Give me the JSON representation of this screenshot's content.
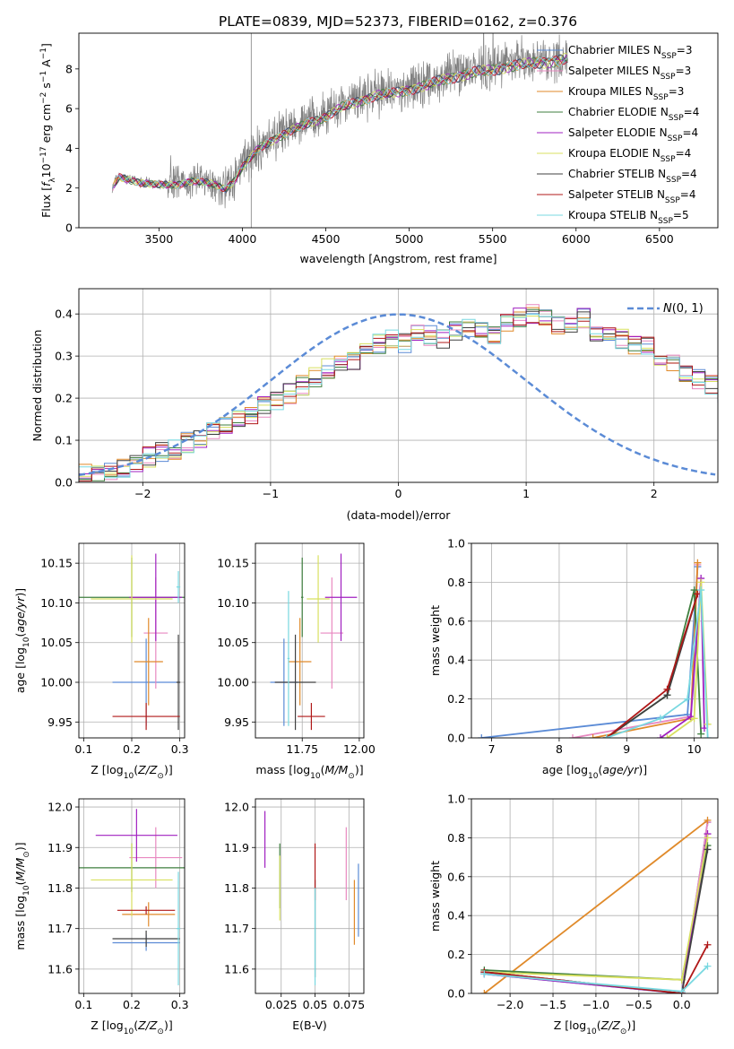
{
  "title": "PLATE=0839, MJD=52373, FIBERID=0162, z=0.376",
  "colors": {
    "Chabrier MILES": "#5b8bd6",
    "Salpeter MILES": "#e888c0",
    "Kroupa MILES": "#e08a2a",
    "Chabrier ELODIE": "#3f7f3f",
    "Salpeter ELODIE": "#a020c0",
    "Kroupa ELODIE": "#d8e060",
    "Chabrier STELIB": "#404040",
    "Salpeter STELIB": "#b01818",
    "Kroupa STELIB": "#78d8e0",
    "data_gray": "#808080",
    "normal_curve": "#5b8bd6"
  },
  "chart_data": [
    {
      "id": "spectrum",
      "type": "line",
      "xlabel": "wavelength [Angstrom, rest frame]",
      "ylabel": "Flux [f_λ 10^-17 erg cm^-2 s^-1 A^-1]",
      "xlim": [
        3020,
        6850
      ],
      "ylim": [
        0,
        9.8
      ],
      "xticks": [
        3500,
        4000,
        4500,
        5000,
        5500,
        6000,
        6500
      ],
      "yticks": [
        0,
        2,
        4,
        6,
        8
      ],
      "grid": false,
      "legend_position": "top-right",
      "legend": [
        {
          "model": "Chabrier MILES",
          "nssp": 3
        },
        {
          "model": "Salpeter MILES",
          "nssp": 3
        },
        {
          "model": "Kroupa MILES",
          "nssp": 3
        },
        {
          "model": "Chabrier ELODIE",
          "nssp": 4
        },
        {
          "model": "Salpeter ELODIE",
          "nssp": 4
        },
        {
          "model": "Kroupa ELODIE",
          "nssp": 4
        },
        {
          "model": "Chabrier STELIB",
          "nssp": 4
        },
        {
          "model": "Salpeter STELIB",
          "nssp": 4
        },
        {
          "model": "Kroupa STELIB",
          "nssp": 5
        }
      ],
      "continuum": {
        "x": [
          3220,
          3260,
          3300,
          3400,
          3500,
          3600,
          3700,
          3800,
          3900,
          3950,
          4000,
          4050,
          4100,
          4200,
          4300,
          4400,
          4500,
          4600,
          4700,
          4800,
          4900,
          5000,
          5100,
          5200,
          5300,
          5400,
          5500,
          5600,
          5700,
          5800,
          5900,
          5950
        ],
        "y": [
          2.0,
          2.6,
          2.5,
          2.3,
          2.2,
          2.2,
          2.4,
          2.3,
          2.0,
          2.4,
          3.1,
          3.6,
          4.1,
          4.6,
          5.0,
          5.4,
          5.7,
          6.2,
          6.5,
          6.8,
          6.9,
          7.1,
          7.3,
          7.6,
          7.8,
          8.0,
          8.1,
          8.3,
          8.4,
          8.5,
          8.6,
          8.7
        ]
      }
    },
    {
      "id": "residuals",
      "type": "histogram",
      "xlabel": "(data-model)/error",
      "ylabel": "Normed distribution",
      "xlim": [
        -2.5,
        2.5
      ],
      "ylim": [
        0,
        0.46
      ],
      "xticks": [
        -2,
        -1,
        0,
        1,
        2
      ],
      "yticks": [
        0.0,
        0.1,
        0.2,
        0.3,
        0.4
      ],
      "grid": true,
      "legend_position": "top-right",
      "legend": [
        {
          "name": "N(0,1)"
        }
      ],
      "bins": {
        "start": -2.5,
        "width": 0.1
      },
      "heights": [
        0.02,
        0.025,
        0.03,
        0.035,
        0.045,
        0.06,
        0.07,
        0.08,
        0.095,
        0.105,
        0.12,
        0.13,
        0.15,
        0.16,
        0.18,
        0.19,
        0.21,
        0.23,
        0.25,
        0.27,
        0.28,
        0.29,
        0.31,
        0.33,
        0.34,
        0.33,
        0.36,
        0.35,
        0.34,
        0.36,
        0.37,
        0.36,
        0.35,
        0.38,
        0.39,
        0.4,
        0.39,
        0.37,
        0.38,
        0.39,
        0.36,
        0.35,
        0.34,
        0.33,
        0.32,
        0.3,
        0.28,
        0.26,
        0.245,
        0.23,
        0.21,
        0.2,
        0.18,
        0.165,
        0.15,
        0.14,
        0.125,
        0.11,
        0.1,
        0.09,
        0.08,
        0.07,
        0.065,
        0.055,
        0.05,
        0.045,
        0.04,
        0.035,
        0.03,
        0.025
      ]
    },
    {
      "id": "age-vs-Z",
      "type": "scatter",
      "xlabel": "Z [log10(Z/Z⊙)]",
      "ylabel": "age  [log10(age/yr)]",
      "xlim": [
        0.09,
        0.31
      ],
      "ylim": [
        9.93,
        10.175
      ],
      "xticks": [
        0.1,
        0.2,
        0.3
      ],
      "yticks": [
        9.95,
        10.0,
        10.05,
        10.1,
        10.15
      ],
      "grid": true,
      "points": [
        {
          "model": "Chabrier MILES",
          "x": 0.23,
          "y": 10.0,
          "xerr": 0.07,
          "yerr": 0.055
        },
        {
          "model": "Salpeter MILES",
          "x": 0.25,
          "y": 10.062,
          "xerr": 0.025,
          "yerr": 0.07
        },
        {
          "model": "Kroupa MILES",
          "x": 0.235,
          "y": 10.026,
          "xerr": 0.03,
          "yerr": 0.055
        },
        {
          "model": "Chabrier ELODIE",
          "x": 0.2,
          "y": 10.107,
          "xerr": 0.11,
          "yerr": 0.05
        },
        {
          "model": "Salpeter ELODIE",
          "x": 0.25,
          "y": 10.107,
          "xerr": 0.055,
          "yerr": 0.055
        },
        {
          "model": "Kroupa ELODIE",
          "x": 0.2,
          "y": 10.105,
          "xerr": 0.085,
          "yerr": 0.055
        },
        {
          "model": "Chabrier STELIB",
          "x": 0.297,
          "y": 10.0,
          "xerr": 0.004,
          "yerr": 0.06
        },
        {
          "model": "Salpeter STELIB",
          "x": 0.23,
          "y": 9.957,
          "xerr": 0.07,
          "yerr": 0.017
        },
        {
          "model": "Kroupa STELIB",
          "x": 0.297,
          "y": 10.12,
          "xerr": 0.004,
          "yerr": 0.02
        }
      ]
    },
    {
      "id": "age-vs-mass",
      "type": "scatter",
      "xlabel": "mass [log10(M/M⊙)]",
      "ylabel": "",
      "xlim": [
        11.545,
        12.02
      ],
      "ylim": [
        9.93,
        10.175
      ],
      "xticks": [
        11.75,
        12.0
      ],
      "yticks": [
        9.95,
        10.0,
        10.05,
        10.1,
        10.15
      ],
      "grid": true,
      "points": [
        {
          "model": "Chabrier MILES",
          "x": 11.67,
          "y": 10.0,
          "xerr": 0.06,
          "yerr": 0.055
        },
        {
          "model": "Salpeter MILES",
          "x": 11.88,
          "y": 10.062,
          "xerr": 0.05,
          "yerr": 0.07
        },
        {
          "model": "Kroupa MILES",
          "x": 11.74,
          "y": 10.026,
          "xerr": 0.05,
          "yerr": 0.055
        },
        {
          "model": "Chabrier ELODIE",
          "x": 11.75,
          "y": 10.107,
          "xerr": 0.005,
          "yerr": 0.05
        },
        {
          "model": "Salpeter ELODIE",
          "x": 11.92,
          "y": 10.107,
          "xerr": 0.07,
          "yerr": 0.055
        },
        {
          "model": "Kroupa ELODIE",
          "x": 11.82,
          "y": 10.105,
          "xerr": 0.05,
          "yerr": 0.055
        },
        {
          "model": "Chabrier STELIB",
          "x": 11.72,
          "y": 10.0,
          "xerr": 0.09,
          "yerr": 0.06
        },
        {
          "model": "Salpeter STELIB",
          "x": 11.79,
          "y": 9.957,
          "xerr": 0.06,
          "yerr": 0.017
        },
        {
          "model": "Kroupa STELIB",
          "x": 11.69,
          "y": 10.03,
          "xerr": 0.005,
          "yerr": 0.085
        }
      ]
    },
    {
      "id": "weight-vs-age",
      "type": "line",
      "xlabel": "age  [log10(age/yr)]",
      "ylabel": "mass weight",
      "xlim": [
        6.7,
        10.35
      ],
      "ylim": [
        0,
        1.0
      ],
      "xticks": [
        7,
        8,
        9,
        10
      ],
      "yticks": [
        0.0,
        0.2,
        0.4,
        0.6,
        0.8,
        1.0
      ],
      "grid": true,
      "series": [
        {
          "model": "Chabrier MILES",
          "x": [
            6.85,
            9.9,
            10.05
          ],
          "y": [
            0.0,
            0.12,
            0.88
          ]
        },
        {
          "model": "Salpeter MILES",
          "x": [
            8.2,
            9.95,
            10.05
          ],
          "y": [
            0.0,
            0.11,
            0.89
          ]
        },
        {
          "model": "Kroupa MILES",
          "x": [
            8.5,
            9.95,
            10.05
          ],
          "y": [
            0.0,
            0.1,
            0.9
          ]
        },
        {
          "model": "Chabrier ELODIE",
          "x": [
            8.7,
            9.6,
            10.0,
            10.1
          ],
          "y": [
            0.0,
            0.22,
            0.76,
            0.02
          ]
        },
        {
          "model": "Salpeter ELODIE",
          "x": [
            9.5,
            9.95,
            10.1,
            10.15
          ],
          "y": [
            0.0,
            0.11,
            0.82,
            0.05
          ]
        },
        {
          "model": "Kroupa ELODIE",
          "x": [
            9.6,
            10.0,
            10.1,
            10.2
          ],
          "y": [
            0.0,
            0.1,
            0.8,
            0.07
          ]
        },
        {
          "model": "Chabrier STELIB",
          "x": [
            8.7,
            9.6,
            10.05
          ],
          "y": [
            0.0,
            0.22,
            0.74
          ]
        },
        {
          "model": "Salpeter STELIB",
          "x": [
            8.7,
            9.6,
            10.05
          ],
          "y": [
            0.0,
            0.25,
            0.74
          ]
        },
        {
          "model": "Kroupa STELIB",
          "x": [
            8.7,
            9.5,
            9.9,
            10.1,
            10.2
          ],
          "y": [
            0.0,
            0.1,
            0.2,
            0.76,
            0.0
          ]
        }
      ]
    },
    {
      "id": "mass-vs-Z",
      "type": "scatter",
      "xlabel": "Z [log10(Z/Z⊙)]",
      "ylabel": "mass [log10(M/M⊙)]",
      "xlim": [
        0.09,
        0.31
      ],
      "ylim": [
        11.54,
        12.02
      ],
      "xticks": [
        0.1,
        0.2,
        0.3
      ],
      "yticks": [
        11.6,
        11.7,
        11.8,
        11.9,
        12.0
      ],
      "grid": true,
      "points": [
        {
          "model": "Chabrier MILES",
          "x": 0.23,
          "y": 11.665,
          "xerr": 0.07,
          "yerr": 0.02
        },
        {
          "model": "Salpeter MILES",
          "x": 0.25,
          "y": 11.875,
          "xerr": 0.055,
          "yerr": 0.075
        },
        {
          "model": "Kroupa MILES",
          "x": 0.235,
          "y": 11.735,
          "xerr": 0.055,
          "yerr": 0.03
        },
        {
          "model": "Chabrier ELODIE",
          "x": 0.2,
          "y": 11.85,
          "xerr": 0.11,
          "yerr": 0.06
        },
        {
          "model": "Salpeter ELODIE",
          "x": 0.21,
          "y": 11.93,
          "xerr": 0.085,
          "yerr": 0.065
        },
        {
          "model": "Kroupa ELODIE",
          "x": 0.2,
          "y": 11.82,
          "xerr": 0.085,
          "yerr": 0.09
        },
        {
          "model": "Chabrier STELIB",
          "x": 0.23,
          "y": 11.675,
          "xerr": 0.07,
          "yerr": 0.02
        },
        {
          "model": "Salpeter STELIB",
          "x": 0.23,
          "y": 11.745,
          "xerr": 0.06,
          "yerr": 0.01
        },
        {
          "model": "Kroupa STELIB",
          "x": 0.297,
          "y": 11.7,
          "xerr": 0.004,
          "yerr": 0.14
        }
      ]
    },
    {
      "id": "mass-vs-EBV",
      "type": "scatter",
      "xlabel": "E(B-V)",
      "ylabel": "",
      "xlim": [
        0.006,
        0.086
      ],
      "ylim": [
        11.54,
        12.02
      ],
      "xticks": [
        0.025,
        0.05,
        0.075
      ],
      "yticks": [
        11.6,
        11.7,
        11.8,
        11.9,
        12.0
      ],
      "grid": true,
      "points": [
        {
          "model": "Chabrier MILES",
          "x": 0.082,
          "y": 11.77,
          "xerr": 0.0,
          "yerr": 0.09
        },
        {
          "model": "Salpeter MILES",
          "x": 0.073,
          "y": 11.86,
          "xerr": 0.0,
          "yerr": 0.09
        },
        {
          "model": "Kroupa MILES",
          "x": 0.079,
          "y": 11.74,
          "xerr": 0.0,
          "yerr": 0.08
        },
        {
          "model": "Chabrier ELODIE",
          "x": 0.024,
          "y": 11.83,
          "xerr": 0.0,
          "yerr": 0.08
        },
        {
          "model": "Salpeter ELODIE",
          "x": 0.013,
          "y": 11.92,
          "xerr": 0.0,
          "yerr": 0.07
        },
        {
          "model": "Kroupa ELODIE",
          "x": 0.024,
          "y": 11.8,
          "xerr": 0.0,
          "yerr": 0.08
        },
        {
          "model": "Chabrier STELIB",
          "x": 0.05,
          "y": 11.7,
          "xerr": 0.0,
          "yerr": 0.12
        },
        {
          "model": "Salpeter STELIB",
          "x": 0.05,
          "y": 11.84,
          "xerr": 0.0,
          "yerr": 0.07
        },
        {
          "model": "Kroupa STELIB",
          "x": 0.05,
          "y": 11.68,
          "xerr": 0.0,
          "yerr": 0.12
        }
      ]
    },
    {
      "id": "weight-vs-Z",
      "type": "line",
      "xlabel": "Z [log10(Z/Z⊙)]",
      "ylabel": "mass weight",
      "xlim": [
        -2.45,
        0.42
      ],
      "ylim": [
        0,
        1.0
      ],
      "xticks": [
        -2.0,
        -1.5,
        -1.0,
        -0.5,
        0.0
      ],
      "yticks": [
        0.0,
        0.2,
        0.4,
        0.6,
        0.8,
        1.0
      ],
      "grid": true,
      "series": [
        {
          "model": "Chabrier MILES",
          "x": [
            -2.3,
            0.0,
            0.3
          ],
          "y": [
            0.1,
            0.0,
            0.88
          ]
        },
        {
          "model": "Salpeter MILES",
          "x": [
            -2.3,
            0.0,
            0.3
          ],
          "y": [
            0.11,
            0.0,
            0.88
          ]
        },
        {
          "model": "Kroupa MILES",
          "x": [
            -2.3,
            0.3
          ],
          "y": [
            0.0,
            0.89
          ]
        },
        {
          "model": "Chabrier ELODIE",
          "x": [
            -2.3,
            0.0,
            0.3
          ],
          "y": [
            0.12,
            0.07,
            0.76
          ]
        },
        {
          "model": "Salpeter ELODIE",
          "x": [
            -2.3,
            0.0,
            0.3
          ],
          "y": [
            0.1,
            0.0,
            0.82
          ]
        },
        {
          "model": "Kroupa ELODIE",
          "x": [
            -2.3,
            0.0,
            0.3
          ],
          "y": [
            0.11,
            0.07,
            0.8
          ]
        },
        {
          "model": "Chabrier STELIB",
          "x": [
            -2.3,
            0.0,
            0.3
          ],
          "y": [
            0.11,
            0.0,
            0.74
          ]
        },
        {
          "model": "Salpeter STELIB",
          "x": [
            -2.3,
            0.0,
            0.3
          ],
          "y": [
            0.11,
            0.0,
            0.25
          ]
        },
        {
          "model": "Kroupa STELIB",
          "x": [
            -2.3,
            0.0,
            0.3
          ],
          "y": [
            0.1,
            0.01,
            0.14
          ]
        }
      ]
    }
  ]
}
